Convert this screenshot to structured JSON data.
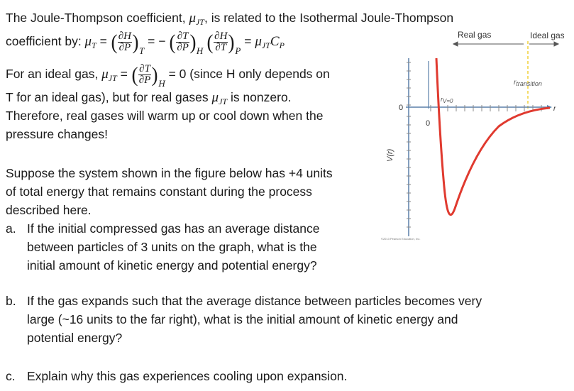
{
  "intro": {
    "line1": "The Joule-Thompson coefficient, ",
    "line1_tail": ", is related to the Isothermal Joule-Thompson",
    "line2_lead": "coefficient by: ",
    "mu": "μ",
    "sub_JT": "JT",
    "sub_T": "T",
    "dH": "∂H",
    "dP": "∂P",
    "dT": "∂T",
    "sub_H": "H",
    "sub_P": "P",
    "C": "C",
    "equals": "=",
    "minus": "= −",
    "ideal_lead": "For an ideal gas, ",
    "ideal_tail": "= 0 (since H only depends on",
    "line4_a": "T for an ideal gas), but for real gases ",
    "line4_b": " is nonzero.",
    "line5": "Therefore, real gases will warm up or cool down when the",
    "line6": "pressure changes!"
  },
  "problem": {
    "p1": "Suppose the system shown in the figure below has +4 units",
    "p2": "of total energy that remains constant during the process",
    "p3": "described here.",
    "a_marker": "a.",
    "a1": "If the initial compressed gas has an average distance",
    "a2": "between particles of 3 units on the graph, what is the",
    "a3": "initial amount of kinetic energy and potential energy?",
    "b_marker": "b.",
    "b1": "If the gas expands such that the average distance between particles becomes very",
    "b2": "large (~16 units to the far right), what is the initial amount of kinetic energy and",
    "b3": "potential energy?",
    "c_marker": "c.",
    "c1": "Explain why this gas experiences cooling upon expansion."
  },
  "figure": {
    "real_gas_label": "Real gas",
    "ideal_gas_label": "Ideal gas",
    "r_transition": "r",
    "r_transition_sub": "transition",
    "r_v0": "r",
    "r_v0_sub": "V=0",
    "zero_y": "0",
    "zero_x": "0",
    "y_axis_label": "V(r)",
    "x_axis_label": "r",
    "copyright": "©2013 Pearson Education, Inc.",
    "curve_color": "#e03a2f",
    "axis_color": "#5a7fa8",
    "marker_color": "#f2d13a"
  }
}
